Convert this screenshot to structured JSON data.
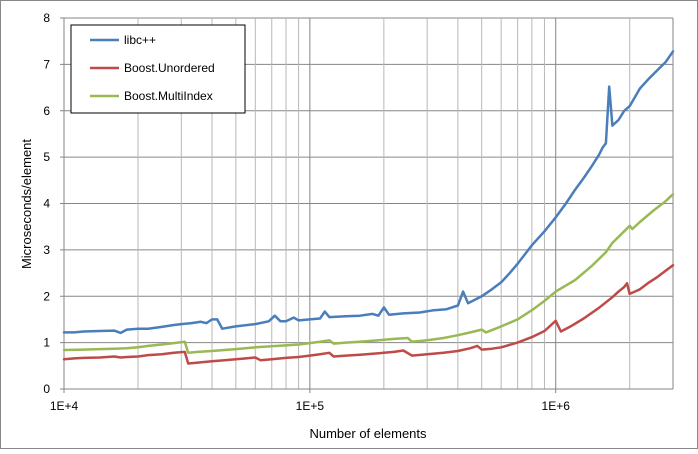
{
  "chart_data": {
    "type": "line",
    "title": "",
    "xlabel": "Number of elements",
    "ylabel": "Microseconds/element",
    "x_scale": "log10",
    "xlim": [
      10000,
      3000000
    ],
    "ylim": [
      0,
      8
    ],
    "grid": true,
    "legend_position": "top-left",
    "x_tick_labels": [
      {
        "value": 10000,
        "label": "1E+4"
      },
      {
        "value": 100000,
        "label": "1E+5"
      },
      {
        "value": 1000000,
        "label": "1E+6"
      }
    ],
    "y_tick_labels": [
      "0",
      "1",
      "2",
      "3",
      "4",
      "5",
      "6",
      "7",
      "8"
    ],
    "series": [
      {
        "name": "libc++",
        "color": "#4a7ebb",
        "points": [
          [
            10000,
            1.22
          ],
          [
            11000,
            1.22
          ],
          [
            12000,
            1.24
          ],
          [
            14000,
            1.25
          ],
          [
            16000,
            1.26
          ],
          [
            17000,
            1.21
          ],
          [
            18000,
            1.28
          ],
          [
            20000,
            1.3
          ],
          [
            22000,
            1.3
          ],
          [
            25000,
            1.34
          ],
          [
            28000,
            1.38
          ],
          [
            30000,
            1.4
          ],
          [
            33000,
            1.42
          ],
          [
            36000,
            1.45
          ],
          [
            38000,
            1.42
          ],
          [
            40000,
            1.5
          ],
          [
            42000,
            1.5
          ],
          [
            44000,
            1.3
          ],
          [
            50000,
            1.35
          ],
          [
            60000,
            1.4
          ],
          [
            68000,
            1.46
          ],
          [
            72000,
            1.58
          ],
          [
            76000,
            1.46
          ],
          [
            80000,
            1.46
          ],
          [
            86000,
            1.54
          ],
          [
            90000,
            1.48
          ],
          [
            100000,
            1.5
          ],
          [
            110000,
            1.52
          ],
          [
            115000,
            1.67
          ],
          [
            120000,
            1.55
          ],
          [
            140000,
            1.57
          ],
          [
            160000,
            1.58
          ],
          [
            180000,
            1.62
          ],
          [
            190000,
            1.58
          ],
          [
            200000,
            1.76
          ],
          [
            210000,
            1.6
          ],
          [
            240000,
            1.63
          ],
          [
            280000,
            1.65
          ],
          [
            320000,
            1.7
          ],
          [
            360000,
            1.72
          ],
          [
            400000,
            1.8
          ],
          [
            420000,
            2.1
          ],
          [
            440000,
            1.85
          ],
          [
            500000,
            2.0
          ],
          [
            550000,
            2.15
          ],
          [
            600000,
            2.3
          ],
          [
            650000,
            2.5
          ],
          [
            700000,
            2.7
          ],
          [
            800000,
            3.1
          ],
          [
            900000,
            3.4
          ],
          [
            1000000,
            3.7
          ],
          [
            1100000,
            4.0
          ],
          [
            1200000,
            4.3
          ],
          [
            1300000,
            4.55
          ],
          [
            1400000,
            4.8
          ],
          [
            1500000,
            5.05
          ],
          [
            1550000,
            5.2
          ],
          [
            1600000,
            5.3
          ],
          [
            1650000,
            6.52
          ],
          [
            1700000,
            5.68
          ],
          [
            1800000,
            5.8
          ],
          [
            1900000,
            6.0
          ],
          [
            2000000,
            6.1
          ],
          [
            2200000,
            6.48
          ],
          [
            2400000,
            6.7
          ],
          [
            2600000,
            6.88
          ],
          [
            2800000,
            7.05
          ],
          [
            3000000,
            7.28
          ]
        ]
      },
      {
        "name": "Boost.Unordered",
        "color": "#be4b48",
        "points": [
          [
            10000,
            0.64
          ],
          [
            11000,
            0.66
          ],
          [
            12000,
            0.67
          ],
          [
            14000,
            0.68
          ],
          [
            16000,
            0.7
          ],
          [
            17000,
            0.68
          ],
          [
            18000,
            0.69
          ],
          [
            20000,
            0.7
          ],
          [
            22000,
            0.73
          ],
          [
            25000,
            0.75
          ],
          [
            28000,
            0.78
          ],
          [
            31000,
            0.8
          ],
          [
            32000,
            0.55
          ],
          [
            35000,
            0.57
          ],
          [
            40000,
            0.6
          ],
          [
            45000,
            0.62
          ],
          [
            50000,
            0.64
          ],
          [
            55000,
            0.66
          ],
          [
            60000,
            0.68
          ],
          [
            63000,
            0.62
          ],
          [
            70000,
            0.64
          ],
          [
            80000,
            0.67
          ],
          [
            90000,
            0.69
          ],
          [
            100000,
            0.72
          ],
          [
            110000,
            0.75
          ],
          [
            120000,
            0.78
          ],
          [
            125000,
            0.7
          ],
          [
            140000,
            0.72
          ],
          [
            160000,
            0.74
          ],
          [
            180000,
            0.76
          ],
          [
            200000,
            0.78
          ],
          [
            220000,
            0.8
          ],
          [
            240000,
            0.83
          ],
          [
            260000,
            0.72
          ],
          [
            300000,
            0.75
          ],
          [
            350000,
            0.78
          ],
          [
            400000,
            0.82
          ],
          [
            450000,
            0.88
          ],
          [
            480000,
            0.93
          ],
          [
            500000,
            0.85
          ],
          [
            550000,
            0.87
          ],
          [
            600000,
            0.9
          ],
          [
            700000,
            1.0
          ],
          [
            800000,
            1.12
          ],
          [
            900000,
            1.25
          ],
          [
            1000000,
            1.47
          ],
          [
            1050000,
            1.24
          ],
          [
            1150000,
            1.35
          ],
          [
            1300000,
            1.52
          ],
          [
            1500000,
            1.75
          ],
          [
            1700000,
            1.98
          ],
          [
            1800000,
            2.1
          ],
          [
            1900000,
            2.2
          ],
          [
            1950000,
            2.28
          ],
          [
            2000000,
            2.05
          ],
          [
            2200000,
            2.15
          ],
          [
            2400000,
            2.3
          ],
          [
            2600000,
            2.42
          ],
          [
            2800000,
            2.55
          ],
          [
            3000000,
            2.67
          ]
        ]
      },
      {
        "name": "Boost.MultiIndex",
        "color": "#98b954",
        "points": [
          [
            10000,
            0.84
          ],
          [
            12000,
            0.85
          ],
          [
            14000,
            0.86
          ],
          [
            16000,
            0.87
          ],
          [
            18000,
            0.88
          ],
          [
            20000,
            0.9
          ],
          [
            22000,
            0.93
          ],
          [
            25000,
            0.96
          ],
          [
            28000,
            0.99
          ],
          [
            31000,
            1.02
          ],
          [
            32000,
            0.78
          ],
          [
            35000,
            0.8
          ],
          [
            40000,
            0.82
          ],
          [
            45000,
            0.84
          ],
          [
            50000,
            0.86
          ],
          [
            60000,
            0.9
          ],
          [
            70000,
            0.92
          ],
          [
            80000,
            0.94
          ],
          [
            90000,
            0.96
          ],
          [
            100000,
            0.99
          ],
          [
            110000,
            1.02
          ],
          [
            120000,
            1.05
          ],
          [
            125000,
            0.98
          ],
          [
            140000,
            1.0
          ],
          [
            160000,
            1.02
          ],
          [
            180000,
            1.04
          ],
          [
            200000,
            1.06
          ],
          [
            220000,
            1.08
          ],
          [
            250000,
            1.1
          ],
          [
            260000,
            1.02
          ],
          [
            300000,
            1.05
          ],
          [
            350000,
            1.1
          ],
          [
            400000,
            1.16
          ],
          [
            450000,
            1.22
          ],
          [
            500000,
            1.28
          ],
          [
            520000,
            1.22
          ],
          [
            600000,
            1.35
          ],
          [
            700000,
            1.5
          ],
          [
            800000,
            1.7
          ],
          [
            900000,
            1.9
          ],
          [
            1000000,
            2.1
          ],
          [
            1200000,
            2.35
          ],
          [
            1400000,
            2.65
          ],
          [
            1600000,
            2.95
          ],
          [
            1700000,
            3.15
          ],
          [
            1900000,
            3.4
          ],
          [
            2000000,
            3.52
          ],
          [
            2050000,
            3.45
          ],
          [
            2200000,
            3.6
          ],
          [
            2500000,
            3.85
          ],
          [
            2800000,
            4.05
          ],
          [
            3000000,
            4.2
          ]
        ]
      }
    ]
  }
}
